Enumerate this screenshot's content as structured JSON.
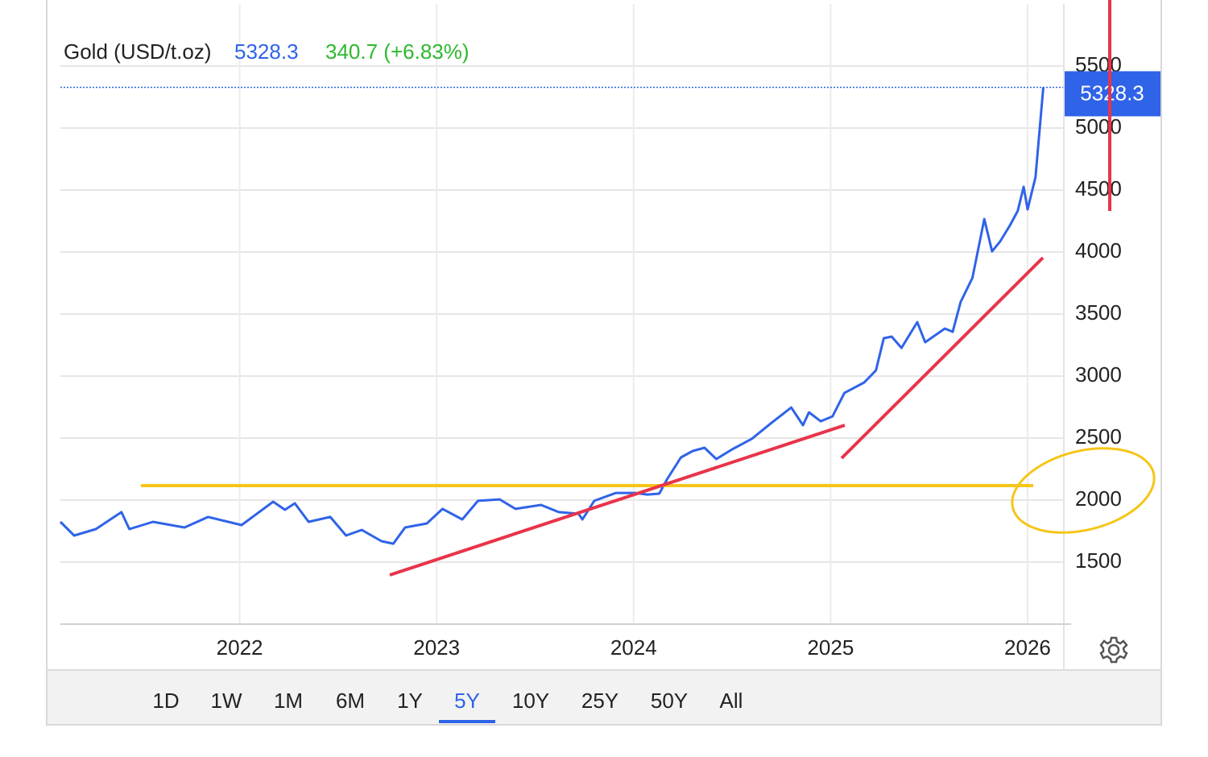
{
  "chart_data": {
    "type": "line",
    "title": "Gold (USD/t.oz)",
    "last_value": 5328.3,
    "change": "340.7 (+6.83%)",
    "color": "#2f63e8",
    "grid": true,
    "x": [
      2021.09,
      2021.16,
      2021.27,
      2021.4,
      2021.44,
      2021.56,
      2021.72,
      2021.84,
      2022.01,
      2022.17,
      2022.23,
      2022.28,
      2022.35,
      2022.46,
      2022.54,
      2022.62,
      2022.72,
      2022.78,
      2022.84,
      2022.95,
      2023.03,
      2023.13,
      2023.21,
      2023.32,
      2023.4,
      2023.53,
      2023.62,
      2023.72,
      2023.74,
      2023.8,
      2023.91,
      2024.01,
      2024.07,
      2024.13,
      2024.17,
      2024.24,
      2024.3,
      2024.36,
      2024.42,
      2024.5,
      2024.6,
      2024.7,
      2024.8,
      2024.86,
      2024.89,
      2024.95,
      2025.01,
      2025.07,
      2025.17,
      2025.23,
      2025.27,
      2025.31,
      2025.36,
      2025.44,
      2025.48,
      2025.58,
      2025.62,
      2025.66,
      2025.72,
      2025.78,
      2025.82,
      2025.86,
      2025.91,
      2025.95,
      2025.98,
      2026.0,
      2026.04,
      2026.08
    ],
    "values": [
      1825,
      1714,
      1766,
      1903,
      1766,
      1825,
      1779,
      1864,
      1799,
      1987,
      1922,
      1974,
      1825,
      1864,
      1714,
      1760,
      1669,
      1649,
      1779,
      1812,
      1929,
      1844,
      1994,
      2006,
      1929,
      1961,
      1903,
      1890,
      1844,
      1994,
      2058,
      2058,
      2045,
      2052,
      2169,
      2344,
      2396,
      2422,
      2331,
      2409,
      2494,
      2623,
      2747,
      2604,
      2708,
      2636,
      2675,
      2864,
      2948,
      3045,
      3305,
      3318,
      3227,
      3435,
      3273,
      3383,
      3357,
      3597,
      3792,
      4266,
      4006,
      4084,
      4214,
      4331,
      4526,
      4344,
      4604,
      5328.3
    ],
    "xlim": [
      2021.09,
      2026.18
    ],
    "xticks": [
      2022,
      2023,
      2024,
      2025,
      2026
    ],
    "ylim": [
      1000,
      6000
    ],
    "yticks": [
      1500,
      2000,
      2500,
      3000,
      3500,
      4000,
      4500,
      5000,
      5500
    ]
  },
  "ranges": [
    "1D",
    "1W",
    "1M",
    "6M",
    "1Y",
    "5Y",
    "10Y",
    "25Y",
    "50Y",
    "All"
  ],
  "selected_range": 5
}
